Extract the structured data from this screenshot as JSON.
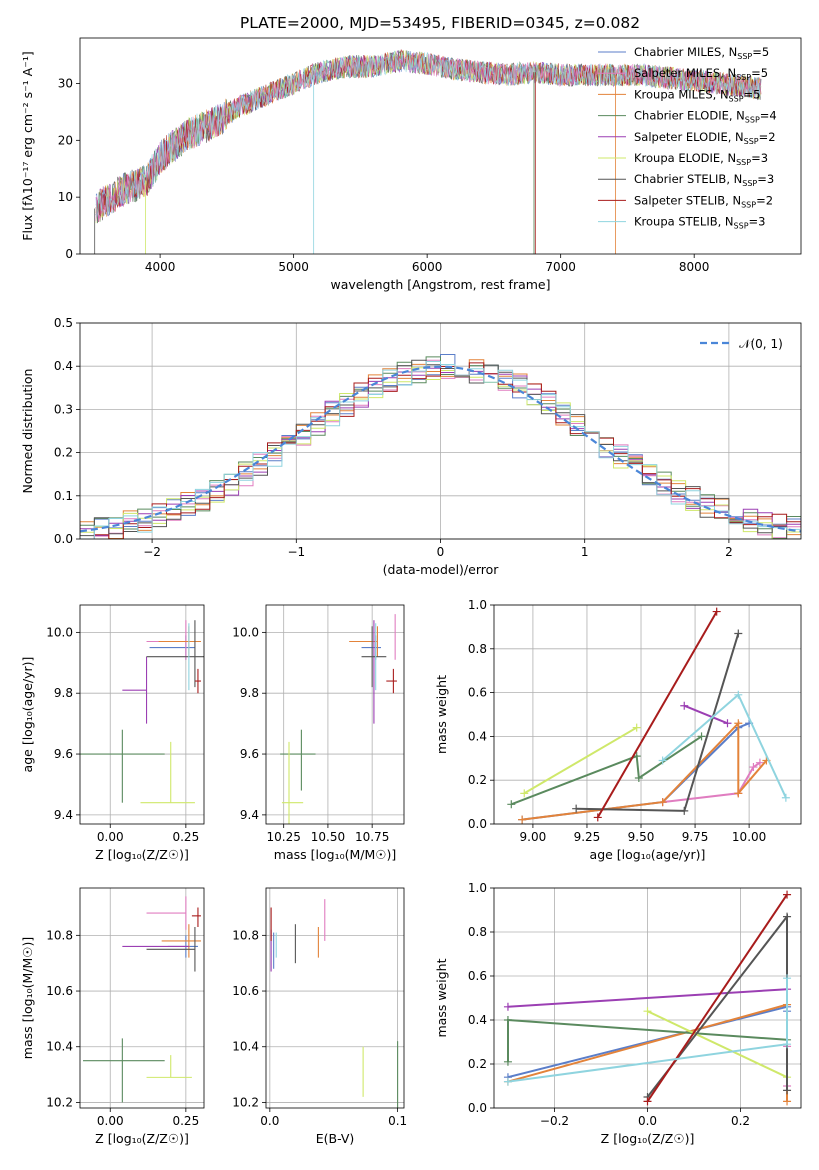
{
  "figure_title": "PLATE=2000, MJD=53495, FIBERID=0345, z=0.082",
  "series_colors": [
    "#5b7ec9",
    "#e07dc0",
    "#e3833a",
    "#5a8a5e",
    "#9b3fb3",
    "#cfe86a",
    "#555555",
    "#a81c1c",
    "#8fd4df"
  ],
  "chart_data": [
    {
      "id": "spectrum",
      "type": "line",
      "xlabel": "wavelength [Angstrom, rest frame]",
      "ylabel": "Flux [fλ10⁻¹⁷ erg cm⁻² s⁻¹ A⁻¹]",
      "xlim": [
        3400,
        8800
      ],
      "ylim": [
        0,
        38
      ],
      "xticks": [
        4000,
        5000,
        6000,
        7000,
        8000
      ],
      "yticks": [
        0,
        10,
        20,
        30
      ],
      "legend_position": "top-right",
      "legend": [
        {
          "label": "Chabrier MILES, N",
          "sub": "SSP",
          "tail": "=5"
        },
        {
          "label": "Salpeter MILES, N",
          "sub": "SSP",
          "tail": "=5"
        },
        {
          "label": "Kroupa MILES, N",
          "sub": "SSP",
          "tail": "=5"
        },
        {
          "label": "Chabrier ELODIE, N",
          "sub": "SSP",
          "tail": "=4"
        },
        {
          "label": "Salpeter ELODIE, N",
          "sub": "SSP",
          "tail": "=2"
        },
        {
          "label": "Kroupa ELODIE, N",
          "sub": "SSP",
          "tail": "=3"
        },
        {
          "label": "Chabrier STELIB, N",
          "sub": "SSP",
          "tail": "=3"
        },
        {
          "label": "Salpeter STELIB, N",
          "sub": "SSP",
          "tail": "=2"
        },
        {
          "label": "Kroupa STELIB, N",
          "sub": "SSP",
          "tail": "=3"
        }
      ],
      "continuum": {
        "x": [
          3520,
          3700,
          3900,
          4000,
          4200,
          4400,
          4600,
          4800,
          5000,
          5200,
          5400,
          5600,
          5800,
          6000,
          6200,
          6400,
          6600,
          6800,
          7000,
          7200,
          7400,
          7600,
          7800,
          8000,
          8200,
          8400,
          8500
        ],
        "y": [
          8,
          11,
          13,
          17,
          21,
          23,
          26,
          28,
          30,
          32,
          33,
          33,
          34,
          33.5,
          32.5,
          32,
          31.5,
          32,
          31.5,
          31.5,
          31.5,
          31.5,
          31,
          30.5,
          30,
          29.5,
          29
        ]
      }
    },
    {
      "id": "residuals",
      "type": "histogram",
      "xlabel": "(data-model)/error",
      "ylabel": "Normed distribution",
      "xlim": [
        -2.5,
        2.5
      ],
      "ylim": [
        0,
        0.5
      ],
      "xticks": [
        -2,
        -1,
        0,
        1,
        2
      ],
      "yticks": [
        0.0,
        0.1,
        0.2,
        0.3,
        0.4,
        0.5
      ],
      "grid": true,
      "legend_position": "top-right",
      "legend": [
        "𝒩(0, 1)"
      ],
      "bin_width": 0.1
    },
    {
      "id": "age_vs_Z",
      "type": "scatter",
      "xlabel": "Z [log₁₀(Z/Z☉)]",
      "ylabel": "age  [log₁₀(age/yr)]",
      "xlim": [
        -0.1,
        0.31
      ],
      "ylim": [
        9.37,
        10.09
      ],
      "xticks": [
        0.0,
        0.25
      ],
      "yticks": [
        9.4,
        9.6,
        9.8,
        10.0
      ],
      "grid": true,
      "points": [
        {
          "x": 0.25,
          "y": 9.95,
          "xerr": [
            0.12,
            0.03
          ],
          "yerr": [
            0.04,
            0.04
          ],
          "c": 0
        },
        {
          "x": 0.25,
          "y": 9.97,
          "xerr": [
            0.13,
            0.02
          ],
          "yerr": [
            0.06,
            0.07
          ],
          "c": 1
        },
        {
          "x": 0.26,
          "y": 9.97,
          "xerr": [
            0.1,
            0.04
          ],
          "yerr": [
            0.05,
            0.05
          ],
          "c": 2
        },
        {
          "x": 0.04,
          "y": 9.6,
          "xerr": [
            0.14,
            0.14
          ],
          "yerr": [
            0.16,
            0.08
          ],
          "c": 3
        },
        {
          "x": 0.12,
          "y": 9.81,
          "xerr": [
            0.08,
            0.0
          ],
          "yerr": [
            0.11,
            0.11
          ],
          "c": 4
        },
        {
          "x": 0.2,
          "y": 9.44,
          "xerr": [
            0.1,
            0.08
          ],
          "yerr": [
            0.0,
            0.2
          ],
          "c": 5
        },
        {
          "x": 0.28,
          "y": 9.92,
          "xerr": [
            0.16,
            0.06
          ],
          "yerr": [
            0.1,
            0.12
          ],
          "c": 6
        },
        {
          "x": 0.29,
          "y": 9.84,
          "xerr": [
            0.01,
            0.01
          ],
          "yerr": [
            0.04,
            0.04
          ],
          "c": 7
        },
        {
          "x": 0.26,
          "y": 9.81,
          "xerr": [
            0.0,
            0.0
          ],
          "yerr": [
            0.0,
            0.22
          ],
          "c": 8
        }
      ]
    },
    {
      "id": "age_vs_mass",
      "type": "scatter",
      "xlabel": "mass [log₁₀(M/M☉)]",
      "ylabel": "",
      "xlim": [
        10.15,
        10.93
      ],
      "ylim": [
        9.37,
        10.09
      ],
      "xticks": [
        10.25,
        10.5,
        10.75
      ],
      "yticks": [
        9.4,
        9.6,
        9.8,
        10.0
      ],
      "grid": true,
      "points": [
        {
          "x": 10.77,
          "y": 9.95,
          "xerr": [
            0.08,
            0.03
          ],
          "yerr": [
            0.04,
            0.04
          ],
          "c": 0
        },
        {
          "x": 10.88,
          "y": 9.97,
          "xerr": [
            0.0,
            0.0
          ],
          "yerr": [
            0.06,
            0.09
          ],
          "c": 1
        },
        {
          "x": 10.78,
          "y": 9.97,
          "xerr": [
            0.16,
            0.0
          ],
          "yerr": [
            0.05,
            0.05
          ],
          "c": 2
        },
        {
          "x": 10.35,
          "y": 9.6,
          "xerr": [
            0.12,
            0.08
          ],
          "yerr": [
            0.12,
            0.08
          ],
          "c": 3
        },
        {
          "x": 10.76,
          "y": 9.81,
          "xerr": [
            0.0,
            0.0
          ],
          "yerr": [
            0.11,
            0.23
          ],
          "c": 4
        },
        {
          "x": 10.28,
          "y": 9.44,
          "xerr": [
            0.04,
            0.08
          ],
          "yerr": [
            0.16,
            0.2
          ],
          "c": 5
        },
        {
          "x": 10.75,
          "y": 9.92,
          "xerr": [
            0.06,
            0.08
          ],
          "yerr": [
            0.1,
            0.1
          ],
          "c": 6
        },
        {
          "x": 10.87,
          "y": 9.84,
          "xerr": [
            0.04,
            0.02
          ],
          "yerr": [
            0.04,
            0.04
          ],
          "c": 7
        },
        {
          "x": 10.77,
          "y": 9.81,
          "xerr": [
            0.0,
            0.0
          ],
          "yerr": [
            0.0,
            0.22
          ],
          "c": 8
        }
      ]
    },
    {
      "id": "weight_vs_age",
      "type": "line",
      "xlabel": "age  [log₁₀(age/yr)]",
      "ylabel": "mass weight",
      "xlim": [
        8.82,
        10.24
      ],
      "ylim": [
        0,
        1
      ],
      "xticks": [
        9.0,
        9.25,
        9.5,
        9.75,
        10.0
      ],
      "yticks": [
        0.0,
        0.2,
        0.4,
        0.6,
        0.8,
        1.0
      ],
      "grid": true,
      "series": [
        {
          "c": 0,
          "x": [
            8.95,
            9.6,
            9.95,
            10.0
          ],
          "y": [
            0.02,
            0.1,
            0.44,
            0.46
          ]
        },
        {
          "c": 1,
          "x": [
            9.6,
            9.95,
            10.02,
            10.05
          ],
          "y": [
            0.1,
            0.14,
            0.26,
            0.28
          ]
        },
        {
          "c": 2,
          "x": [
            8.95,
            9.6,
            9.95,
            9.95,
            10.08
          ],
          "y": [
            0.02,
            0.1,
            0.46,
            0.14,
            0.29
          ]
        },
        {
          "c": 3,
          "x": [
            8.9,
            9.48,
            9.49,
            9.78
          ],
          "y": [
            0.09,
            0.31,
            0.21,
            0.4
          ]
        },
        {
          "c": 4,
          "x": [
            9.7,
            9.9
          ],
          "y": [
            0.54,
            0.46
          ]
        },
        {
          "c": 5,
          "x": [
            8.96,
            9.48
          ],
          "y": [
            0.14,
            0.44
          ]
        },
        {
          "c": 6,
          "x": [
            9.2,
            9.7,
            9.95
          ],
          "y": [
            0.07,
            0.06,
            0.87
          ]
        },
        {
          "c": 7,
          "x": [
            9.3,
            9.85
          ],
          "y": [
            0.03,
            0.97
          ]
        },
        {
          "c": 8,
          "x": [
            9.6,
            9.95,
            10.17
          ],
          "y": [
            0.29,
            0.59,
            0.12
          ]
        }
      ]
    },
    {
      "id": "mass_vs_Z",
      "type": "scatter",
      "xlabel": "Z [log₁₀(Z/Z☉)]",
      "ylabel": "mass [log₁₀(M/M☉)]",
      "xlim": [
        -0.1,
        0.31
      ],
      "ylim": [
        10.18,
        10.97
      ],
      "xticks": [
        0.0,
        0.25
      ],
      "yticks": [
        10.2,
        10.4,
        10.6,
        10.8
      ],
      "grid": true,
      "points": [
        {
          "x": 0.25,
          "y": 10.76,
          "xerr": [
            0.06,
            0.04
          ],
          "yerr": [
            0.04,
            0.04
          ],
          "c": 0
        },
        {
          "x": 0.25,
          "y": 10.88,
          "xerr": [
            0.13,
            0.0
          ],
          "yerr": [
            0.06,
            0.06
          ],
          "c": 1
        },
        {
          "x": 0.26,
          "y": 10.78,
          "xerr": [
            0.09,
            0.04
          ],
          "yerr": [
            0.06,
            0.06
          ],
          "c": 2
        },
        {
          "x": 0.04,
          "y": 10.35,
          "xerr": [
            0.13,
            0.14
          ],
          "yerr": [
            0.15,
            0.08
          ],
          "c": 3
        },
        {
          "x": 0.12,
          "y": 10.76,
          "xerr": [
            0.08,
            0.14
          ],
          "yerr": [
            0.0,
            0.0
          ],
          "c": 4
        },
        {
          "x": 0.2,
          "y": 10.29,
          "xerr": [
            0.08,
            0.07
          ],
          "yerr": [
            0.0,
            0.08
          ],
          "c": 5
        },
        {
          "x": 0.28,
          "y": 10.75,
          "xerr": [
            0.16,
            0.0
          ],
          "yerr": [
            0.08,
            0.08
          ],
          "c": 6
        },
        {
          "x": 0.29,
          "y": 10.87,
          "xerr": [
            0.02,
            0.01
          ],
          "yerr": [
            0.04,
            0.03
          ],
          "c": 7
        },
        {
          "x": 0.26,
          "y": 10.77,
          "xerr": [
            0.0,
            0.0
          ],
          "yerr": [
            0.0,
            0.0
          ],
          "c": 8
        }
      ]
    },
    {
      "id": "mass_vs_ebv",
      "type": "scatter",
      "xlabel": "E(B-V)",
      "ylabel": "",
      "xlim": [
        -0.003,
        0.105
      ],
      "ylim": [
        10.18,
        10.97
      ],
      "xticks": [
        0.0,
        0.1
      ],
      "yticks": [
        10.2,
        10.4,
        10.6,
        10.8
      ],
      "grid": true,
      "points": [
        {
          "x": 0.003,
          "y": 10.75,
          "xerr": [
            0.0,
            0.0
          ],
          "yerr": [
            0.07,
            0.06
          ],
          "c": 0
        },
        {
          "x": 0.043,
          "y": 10.84,
          "xerr": [
            0.0,
            0.0
          ],
          "yerr": [
            0.06,
            0.09
          ],
          "c": 1
        },
        {
          "x": 0.038,
          "y": 10.77,
          "xerr": [
            0.0,
            0.0
          ],
          "yerr": [
            0.05,
            0.06
          ],
          "c": 2
        },
        {
          "x": 0.1,
          "y": 10.3,
          "xerr": [
            0.0,
            0.0
          ],
          "yerr": [
            0.12,
            0.12
          ],
          "c": 3
        },
        {
          "x": 0.001,
          "y": 10.76,
          "xerr": [
            0.0,
            0.0
          ],
          "yerr": [
            0.09,
            0.06
          ],
          "c": 4
        },
        {
          "x": 0.073,
          "y": 10.3,
          "xerr": [
            0.0,
            0.0
          ],
          "yerr": [
            0.08,
            0.1
          ],
          "c": 5
        },
        {
          "x": 0.02,
          "y": 10.76,
          "xerr": [
            0.0,
            0.0
          ],
          "yerr": [
            0.06,
            0.08
          ],
          "c": 6
        },
        {
          "x": 0.001,
          "y": 10.84,
          "xerr": [
            0.0,
            0.0
          ],
          "yerr": [
            0.06,
            0.06
          ],
          "c": 7
        },
        {
          "x": 0.005,
          "y": 10.76,
          "xerr": [
            0.0,
            0.0
          ],
          "yerr": [
            0.04,
            0.05
          ],
          "c": 8
        }
      ]
    },
    {
      "id": "weight_vs_Z",
      "type": "line",
      "xlabel": "Z [log₁₀(Z/Z☉)]",
      "ylabel": "mass weight",
      "xlim": [
        -0.33,
        0.33
      ],
      "ylim": [
        0,
        1
      ],
      "xticks": [
        -0.2,
        0.0,
        0.2
      ],
      "yticks": [
        0.0,
        0.2,
        0.4,
        0.6,
        0.8,
        1.0
      ],
      "grid": true,
      "series": [
        {
          "c": 0,
          "x": [
            -0.3,
            0.3,
            0.3
          ],
          "y": [
            0.14,
            0.46,
            0.44
          ]
        },
        {
          "c": 1,
          "x": [
            0.3,
            0.3
          ],
          "y": [
            0.1,
            0.28
          ]
        },
        {
          "c": 2,
          "x": [
            -0.3,
            0.3,
            0.3
          ],
          "y": [
            0.12,
            0.47,
            0.03
          ]
        },
        {
          "c": 3,
          "x": [
            -0.3,
            -0.3,
            0.3
          ],
          "y": [
            0.21,
            0.4,
            0.31
          ]
        },
        {
          "c": 4,
          "x": [
            -0.3,
            0.3
          ],
          "y": [
            0.46,
            0.54
          ]
        },
        {
          "c": 5,
          "x": [
            0.0,
            0.3
          ],
          "y": [
            0.44,
            0.14
          ]
        },
        {
          "c": 6,
          "x": [
            0.0,
            0.3,
            0.3
          ],
          "y": [
            0.05,
            0.87,
            0.08
          ]
        },
        {
          "c": 7,
          "x": [
            0.0,
            0.3
          ],
          "y": [
            0.03,
            0.97
          ]
        },
        {
          "c": 8,
          "x": [
            -0.3,
            0.3,
            0.3
          ],
          "y": [
            0.12,
            0.29,
            0.59
          ]
        }
      ]
    }
  ]
}
